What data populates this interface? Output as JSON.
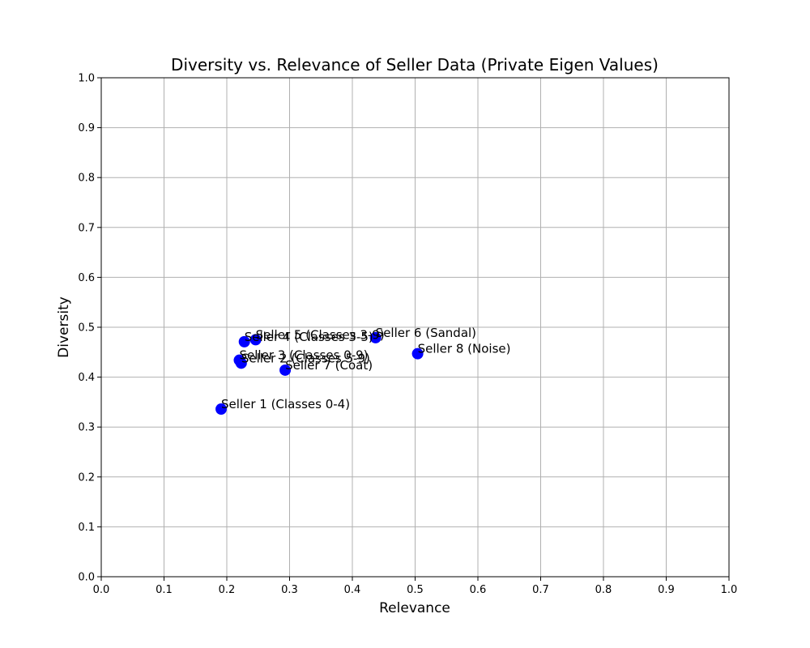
{
  "chart_data": {
    "type": "scatter",
    "title": "Diversity vs. Relevance of Seller Data (Private Eigen Values)",
    "xlabel": "Relevance",
    "ylabel": "Diversity",
    "xlim": [
      0,
      1
    ],
    "ylim": [
      0,
      1
    ],
    "xticks": [
      "0.0",
      "0.1",
      "0.2",
      "0.3",
      "0.4",
      "0.5",
      "0.6",
      "0.7",
      "0.8",
      "0.9",
      "1.0"
    ],
    "yticks": [
      "0.0",
      "0.1",
      "0.2",
      "0.3",
      "0.4",
      "0.5",
      "0.6",
      "0.7",
      "0.8",
      "0.9",
      "1.0"
    ],
    "grid": true,
    "marker_color": "#0000ff",
    "points": [
      {
        "label": "Seller 1 (Classes 0-4)",
        "x": 0.191,
        "y": 0.336
      },
      {
        "label": "Seller 2 (Classes 5-9)",
        "x": 0.223,
        "y": 0.428
      },
      {
        "label": "Seller 3 (Classes 0-9)",
        "x": 0.22,
        "y": 0.434
      },
      {
        "label": "Seller 4 (Classes 3-5)",
        "x": 0.228,
        "y": 0.471
      },
      {
        "label": "Seller 5 (Classes 3-9)",
        "x": 0.246,
        "y": 0.475
      },
      {
        "label": "Seller 6 (Sandal)",
        "x": 0.437,
        "y": 0.479
      },
      {
        "label": "Seller 7 (Coat)",
        "x": 0.293,
        "y": 0.414
      },
      {
        "label": "Seller 8 (Noise)",
        "x": 0.504,
        "y": 0.447
      }
    ]
  }
}
